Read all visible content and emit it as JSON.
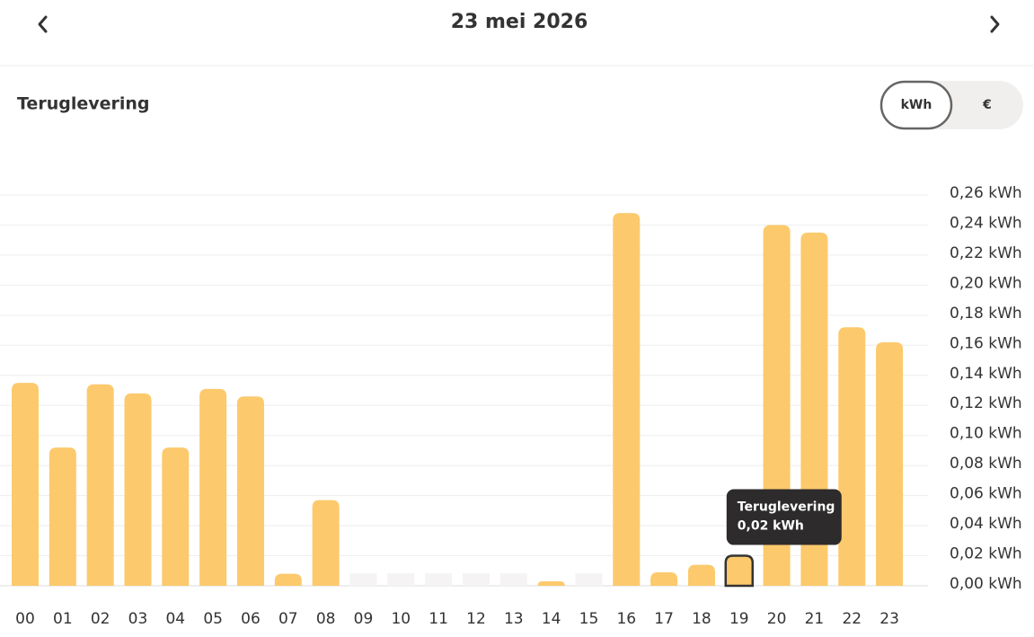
{
  "header": {
    "title": "23 mei 2026"
  },
  "section": {
    "title": "Teruglevering"
  },
  "toggle": {
    "options": [
      "kWh",
      "€"
    ],
    "selected": "kWh"
  },
  "chart_data": {
    "type": "bar",
    "categories": [
      "00",
      "01",
      "02",
      "03",
      "04",
      "05",
      "06",
      "07",
      "08",
      "09",
      "10",
      "11",
      "12",
      "13",
      "14",
      "15",
      "16",
      "17",
      "18",
      "19",
      "20",
      "21",
      "22",
      "23"
    ],
    "series": [
      {
        "name": "Teruglevering",
        "color": "#fcc96c",
        "values": [
          0.135,
          0.092,
          0.134,
          0.128,
          0.092,
          0.131,
          0.126,
          0.008,
          0.057,
          0,
          0,
          0,
          0,
          0,
          0.003,
          0,
          0.248,
          0.009,
          0.014,
          0.02,
          0.24,
          0.235,
          0.172,
          0.162
        ]
      }
    ],
    "ylim": [
      0,
      0.26
    ],
    "yticks": [
      {
        "value": 0,
        "label": "0,00 kWh"
      },
      {
        "value": 0.02,
        "label": "0,02 kWh"
      },
      {
        "value": 0.04,
        "label": "0,04 kWh"
      },
      {
        "value": 0.06,
        "label": "0,06 kWh"
      },
      {
        "value": 0.08,
        "label": "0,08 kWh"
      },
      {
        "value": 0.1,
        "label": "0,10 kWh"
      },
      {
        "value": 0.12,
        "label": "0,12 kWh"
      },
      {
        "value": 0.14,
        "label": "0,14 kWh"
      },
      {
        "value": 0.16,
        "label": "0,16 kWh"
      },
      {
        "value": 0.18,
        "label": "0,18 kWh"
      },
      {
        "value": 0.2,
        "label": "0,20 kWh"
      },
      {
        "value": 0.22,
        "label": "0,22 kWh"
      },
      {
        "value": 0.24,
        "label": "0,24 kWh"
      },
      {
        "value": 0.26,
        "label": "0,26 kWh"
      }
    ],
    "grid": true,
    "tooltip": {
      "category": "19",
      "text": "0,02 kWh"
    }
  }
}
